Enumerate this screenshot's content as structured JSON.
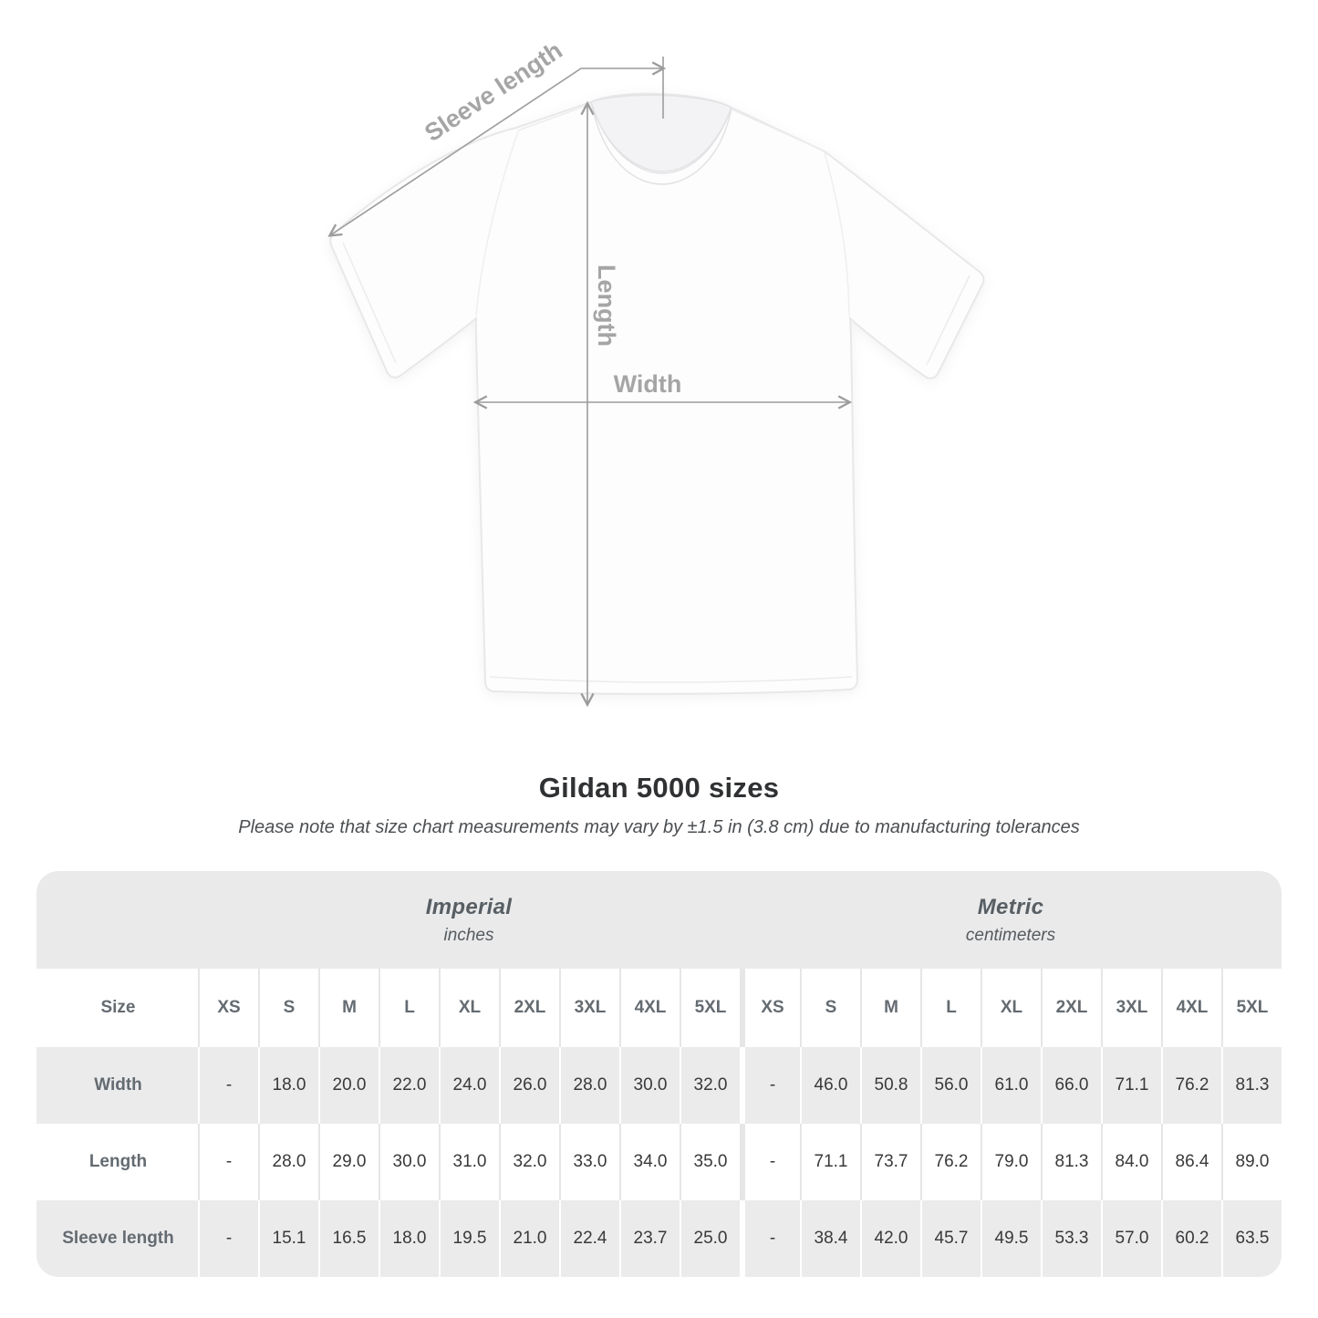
{
  "figure": {
    "labels": {
      "sleeve_length": "Sleeve length",
      "length": "Length",
      "width": "Width"
    }
  },
  "title": "Gildan 5000 sizes",
  "subtitle": "Please note that size chart measurements may vary by ±1.5 in (3.8 cm) due to manufacturing tolerances",
  "table": {
    "size_header": "Size",
    "unit_groups": [
      {
        "name": "Imperial",
        "unit": "inches"
      },
      {
        "name": "Metric",
        "unit": "centimeters"
      }
    ],
    "sizes": [
      "XS",
      "S",
      "M",
      "L",
      "XL",
      "2XL",
      "3XL",
      "4XL",
      "5XL"
    ],
    "rows": [
      {
        "label": "Width",
        "imperial": [
          "-",
          "18.0",
          "20.0",
          "22.0",
          "24.0",
          "26.0",
          "28.0",
          "30.0",
          "32.0"
        ],
        "metric": [
          "-",
          "46.0",
          "50.8",
          "56.0",
          "61.0",
          "66.0",
          "71.1",
          "76.2",
          "81.3"
        ]
      },
      {
        "label": "Length",
        "imperial": [
          "-",
          "28.0",
          "29.0",
          "30.0",
          "31.0",
          "32.0",
          "33.0",
          "34.0",
          "35.0"
        ],
        "metric": [
          "-",
          "71.1",
          "73.7",
          "76.2",
          "79.0",
          "81.3",
          "84.0",
          "86.4",
          "89.0"
        ]
      },
      {
        "label": "Sleeve length",
        "imperial": [
          "-",
          "15.1",
          "16.5",
          "18.0",
          "19.5",
          "21.0",
          "22.4",
          "23.7",
          "25.0"
        ],
        "metric": [
          "-",
          "38.4",
          "42.0",
          "45.7",
          "49.5",
          "53.3",
          "57.0",
          "60.2",
          "63.5"
        ]
      }
    ]
  },
  "colors": {
    "band_background": "#eaeaeb",
    "row_gray": "#ebebec",
    "annotation_gray": "#9c9c9c",
    "label_gray": "#a5a5a5",
    "header_text": "#646b71",
    "value_text": "#38393a"
  }
}
